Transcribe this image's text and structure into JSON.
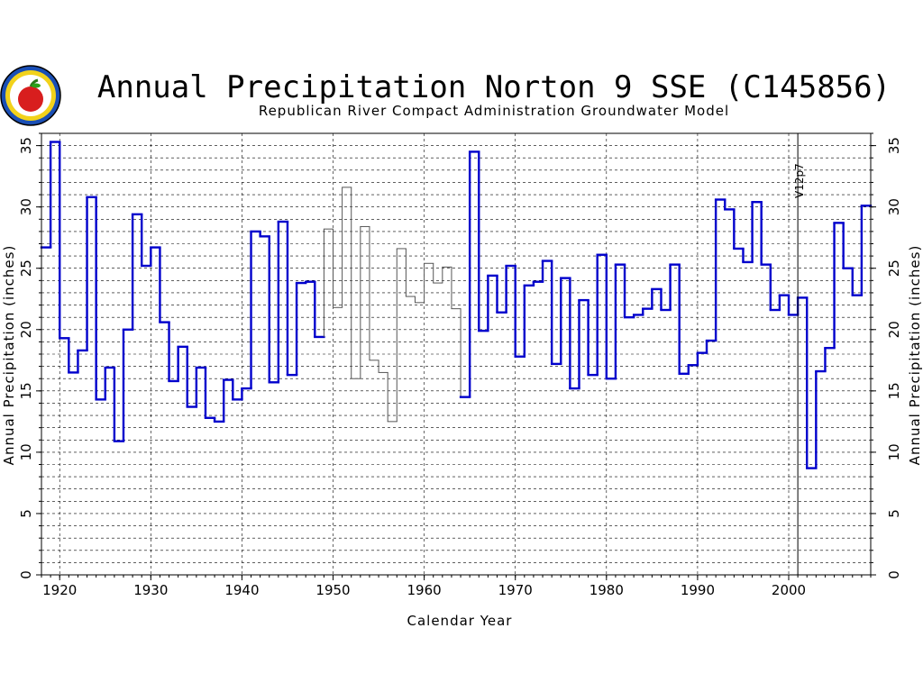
{
  "chart_data": {
    "type": "line",
    "step": true,
    "title": "Annual Precipitation Norton 9 SSE (C145856)",
    "subtitle": "Republican River Compact Administration Groundwater Model",
    "xlabel": "Calendar Year",
    "ylabel": "Annual Precipitation (inches)",
    "xlim": [
      1918,
      2009
    ],
    "ylim": [
      0,
      36
    ],
    "x_ticks": [
      1920,
      1930,
      1940,
      1950,
      1960,
      1970,
      1980,
      1990,
      2000
    ],
    "y_ticks": [
      0,
      5,
      10,
      15,
      20,
      25,
      30,
      35
    ],
    "grid": true,
    "annotation": {
      "label": "V12p7",
      "x": 2001
    },
    "colors": {
      "observed": "#0000cc",
      "estimated": "#555555",
      "grid": "#000000"
    },
    "series": [
      {
        "x": [
          1918,
          1919,
          1920,
          1921,
          1922,
          1923,
          1924,
          1925,
          1926,
          1927,
          1928,
          1929,
          1930,
          1931,
          1932,
          1933,
          1934,
          1935,
          1936,
          1937,
          1938,
          1939,
          1940,
          1941,
          1942,
          1943,
          1944,
          1945,
          1946,
          1947,
          1948,
          1949,
          1950,
          1951,
          1952,
          1953,
          1954,
          1955,
          1956,
          1957,
          1958,
          1959,
          1960,
          1961,
          1962,
          1963,
          1964,
          1965,
          1966,
          1967,
          1968,
          1969,
          1970,
          1971,
          1972,
          1973,
          1974,
          1975,
          1976,
          1977,
          1978,
          1979,
          1980,
          1981,
          1982,
          1983,
          1984,
          1985,
          1986,
          1987,
          1988,
          1989,
          1990,
          1991,
          1992,
          1993,
          1994,
          1995,
          1996,
          1997,
          1998,
          1999,
          2000,
          2001,
          2002,
          2003,
          2004,
          2005,
          2006,
          2007,
          2008
        ],
        "values": [
          26.7,
          35.3,
          19.3,
          16.5,
          18.3,
          30.8,
          14.3,
          16.9,
          10.9,
          20.0,
          29.4,
          25.2,
          26.7,
          20.6,
          15.8,
          18.6,
          13.7,
          16.9,
          12.8,
          12.5,
          15.9,
          14.3,
          15.2,
          28.0,
          27.6,
          15.7,
          28.8,
          16.3,
          23.8,
          23.9,
          19.4,
          28.2,
          21.8,
          31.6,
          16.0,
          28.4,
          17.5,
          16.5,
          12.5,
          26.6,
          22.7,
          22.2,
          25.4,
          23.8,
          25.1,
          21.7,
          14.5,
          34.5,
          19.9,
          24.4,
          21.4,
          25.2,
          17.8,
          23.6,
          23.9,
          25.6,
          17.2,
          24.2,
          15.2,
          22.4,
          16.3,
          26.1,
          16.0,
          25.3,
          21.0,
          21.2,
          21.7,
          23.3,
          21.6,
          25.3,
          16.4,
          17.1,
          18.1,
          19.1,
          30.6,
          29.8,
          26.6,
          25.5,
          30.4,
          25.3,
          21.6,
          22.8,
          21.2,
          22.6,
          8.7,
          16.6,
          18.5,
          28.7,
          25.0,
          22.8,
          30.1
        ],
        "estimated_years": [
          1949,
          1950,
          1951,
          1952,
          1953,
          1954,
          1955,
          1956,
          1957,
          1958,
          1959,
          1960,
          1961,
          1962,
          1963
        ]
      }
    ]
  }
}
